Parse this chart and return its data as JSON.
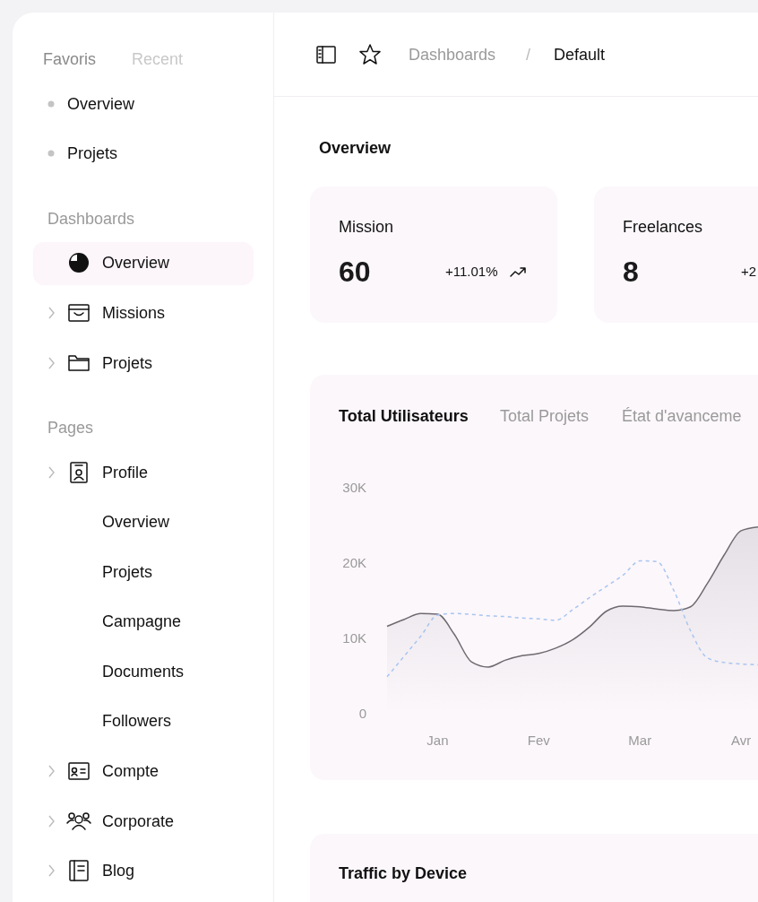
{
  "chart_data": [
    {
      "type": "other",
      "annotations": [
        "Favoris",
        "Recent",
        "Overview",
        "Projets",
        "Dashboards",
        "Overview",
        "Missions",
        "Projets",
        "Pages",
        "Profile",
        "Overview",
        "Projets",
        "Campagne",
        "Documents",
        "Followers",
        "Compte",
        "Corporate",
        "Blog"
      ]
    },
    {
      "type": "other",
      "title": "Overview",
      "annotations": [
        "Dashboards",
        "/",
        "Default",
        "Mission",
        "60",
        "+11.01%",
        "Freelances",
        "8",
        "+2"
      ]
    },
    {
      "type": "line",
      "title": "Total Utilisateurs",
      "annotations": [
        "Total Projets",
        "État d'avanceme"
      ],
      "categories": [
        null,
        null,
        null,
        "Jan",
        null,
        null,
        null,
        null,
        null,
        "Fev",
        null,
        null,
        null,
        null,
        null,
        "Mar",
        null,
        null,
        null,
        null,
        null,
        "Avr",
        null
      ],
      "ylim": [
        0,
        30000
      ],
      "yticks": [
        {
          "value": 0,
          "label": "0"
        },
        {
          "value": 10000,
          "label": "10K"
        },
        {
          "value": 20000,
          "label": "20K"
        },
        {
          "value": 30000,
          "label": "30K"
        }
      ],
      "series": [
        {
          "type": "area",
          "color": "#6e6a70",
          "values": [
            11600,
            12500,
            13300,
            13200,
            10500,
            6900,
            6200,
            7100,
            7700,
            8000,
            8700,
            9800,
            11500,
            13600,
            14300,
            14200,
            13900,
            13700,
            14200,
            17300,
            21100,
            24300,
            24800
          ]
        },
        {
          "type": "line",
          "color": "#a8c5f0",
          "line_style": "dashed",
          "values": [
            4900,
            7600,
            10300,
            13100,
            13300,
            13200,
            13000,
            12900,
            12700,
            12600,
            12400,
            13800,
            15400,
            16900,
            18400,
            20300,
            20200,
            16400,
            11000,
            7400,
            6800,
            6600,
            6500
          ]
        }
      ]
    },
    {
      "type": "other",
      "title": "Traffic by Device"
    }
  ]
}
